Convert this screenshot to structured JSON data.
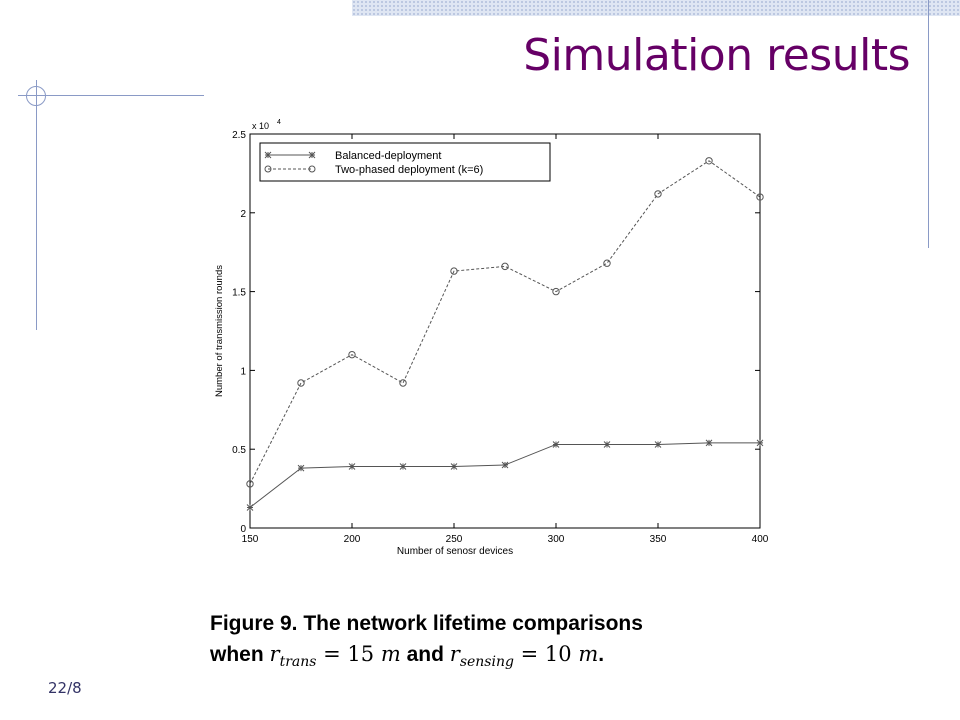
{
  "slide": {
    "title": "Simulation results",
    "number": "22/8"
  },
  "caption": {
    "line1": "Figure 9. The network lifetime comparisons",
    "when": "when",
    "r1_base": "r",
    "r1_sub": "trans",
    "r1_eq": "= 15",
    "r1_unit": "m",
    "and": "and",
    "r2_base": "r",
    "r2_sub": "sensing",
    "r2_eq": "= 10",
    "r2_unit": "m",
    "end": "."
  },
  "chart_data": {
    "type": "line",
    "title": "",
    "xlabel": "Number of senosr devices",
    "ylabel": "Number of transmission rounds",
    "y_multiplier_label": "x 10",
    "y_multiplier_exponent": "4",
    "xlim": [
      150,
      400
    ],
    "ylim": [
      0,
      2.5
    ],
    "x_ticks": [
      "150",
      "200",
      "250",
      "300",
      "350",
      "400"
    ],
    "y_ticks": [
      "0",
      "0.5",
      "1",
      "1.5",
      "2",
      "2.5"
    ],
    "x": [
      150,
      175,
      200,
      225,
      250,
      275,
      300,
      325,
      350,
      375,
      400
    ],
    "series": [
      {
        "name": "Balanced-deployment",
        "marker": "star",
        "line": "solid",
        "values": [
          0.13,
          0.38,
          0.39,
          0.39,
          0.39,
          0.4,
          0.53,
          0.53,
          0.53,
          0.54,
          0.54
        ]
      },
      {
        "name": "Two-phased deployment (k=6)",
        "marker": "circle",
        "line": "dashed",
        "values": [
          0.28,
          0.92,
          1.1,
          0.92,
          1.63,
          1.66,
          1.5,
          1.68,
          2.12,
          2.33,
          2.1
        ]
      }
    ],
    "grid": false,
    "legend_position": "top-left",
    "colors": {
      "axes": "#000000",
      "balanced": "#555555",
      "twophase": "#555555"
    }
  }
}
